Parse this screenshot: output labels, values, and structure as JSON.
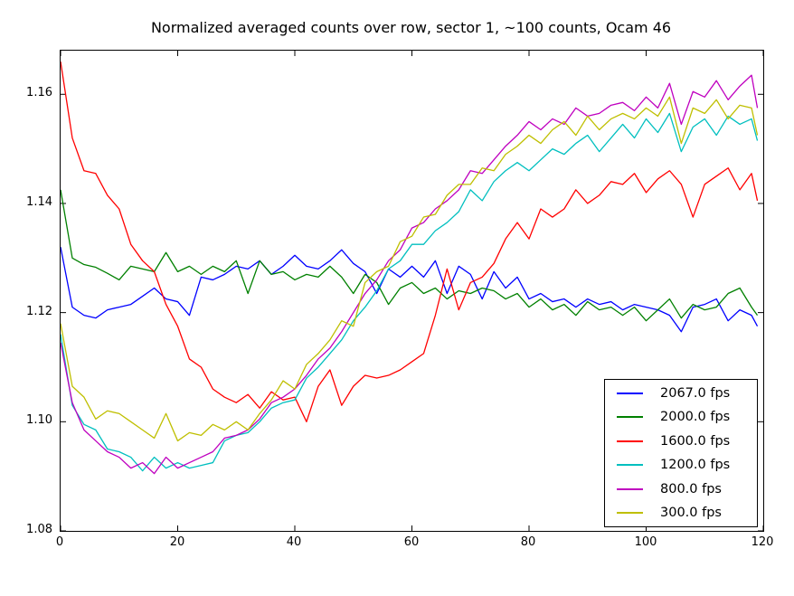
{
  "figure": {
    "background": "#ffffff"
  },
  "chart_data": {
    "type": "line",
    "title": "Normalized averaged counts over row, sector 1, ~100 counts, Ocam 46",
    "xlabel": "",
    "ylabel": "",
    "xlim": [
      0,
      120
    ],
    "ylim": [
      1.08,
      1.168
    ],
    "grid": false,
    "legend_position": "lower right",
    "xticks": {
      "values": [
        0,
        20,
        40,
        60,
        80,
        100,
        120
      ],
      "labels": [
        "0",
        "20",
        "40",
        "60",
        "80",
        "100",
        "120"
      ]
    },
    "yticks": {
      "values": [
        1.08,
        1.1,
        1.12,
        1.14,
        1.16
      ],
      "labels": [
        "1.08",
        "1.10",
        "1.12",
        "1.14",
        "1.16"
      ]
    },
    "x": [
      0,
      2,
      4,
      6,
      8,
      10,
      12,
      14,
      16,
      18,
      20,
      22,
      24,
      26,
      28,
      30,
      32,
      34,
      36,
      38,
      40,
      42,
      44,
      46,
      48,
      50,
      52,
      54,
      56,
      58,
      60,
      62,
      64,
      66,
      68,
      70,
      72,
      74,
      76,
      78,
      80,
      82,
      84,
      86,
      88,
      90,
      92,
      94,
      96,
      98,
      100,
      102,
      104,
      106,
      108,
      110,
      112,
      114,
      116,
      118,
      119
    ],
    "series": [
      {
        "name": "2067.0 fps",
        "color": "#0000ff",
        "values": [
          1.132,
          1.121,
          1.1195,
          1.119,
          1.1205,
          1.121,
          1.1215,
          1.123,
          1.1245,
          1.1225,
          1.122,
          1.1195,
          1.1265,
          1.126,
          1.127,
          1.1285,
          1.128,
          1.1295,
          1.127,
          1.1285,
          1.1305,
          1.1285,
          1.128,
          1.1295,
          1.1315,
          1.129,
          1.1275,
          1.1235,
          1.128,
          1.1265,
          1.1285,
          1.1265,
          1.1295,
          1.1235,
          1.1285,
          1.127,
          1.1225,
          1.1275,
          1.1245,
          1.1265,
          1.1225,
          1.1235,
          1.122,
          1.1225,
          1.121,
          1.1225,
          1.1215,
          1.122,
          1.1205,
          1.1215,
          1.121,
          1.1205,
          1.1195,
          1.1165,
          1.121,
          1.1215,
          1.1225,
          1.1185,
          1.1205,
          1.1195,
          1.1175
        ]
      },
      {
        "name": "2000.0 fps",
        "color": "#008000",
        "values": [
          1.1425,
          1.13,
          1.1288,
          1.1283,
          1.1272,
          1.126,
          1.1285,
          1.128,
          1.1275,
          1.131,
          1.1275,
          1.1285,
          1.127,
          1.1285,
          1.1275,
          1.1295,
          1.1235,
          1.1295,
          1.127,
          1.1275,
          1.126,
          1.127,
          1.1265,
          1.1285,
          1.1265,
          1.1235,
          1.127,
          1.1255,
          1.1215,
          1.1245,
          1.1255,
          1.1235,
          1.1245,
          1.1225,
          1.124,
          1.1235,
          1.1245,
          1.124,
          1.1225,
          1.1235,
          1.121,
          1.1225,
          1.1205,
          1.1215,
          1.1195,
          1.122,
          1.1205,
          1.121,
          1.1195,
          1.121,
          1.1185,
          1.1205,
          1.1225,
          1.119,
          1.1215,
          1.1205,
          1.121,
          1.1235,
          1.1245,
          1.121,
          1.1195
        ]
      },
      {
        "name": "1600.0 fps",
        "color": "#ff0000",
        "values": [
          1.166,
          1.152,
          1.146,
          1.1455,
          1.1415,
          1.139,
          1.1325,
          1.1295,
          1.1275,
          1.1215,
          1.1175,
          1.1115,
          1.11,
          1.106,
          1.1045,
          1.1035,
          1.105,
          1.1025,
          1.1055,
          1.104,
          1.1045,
          1.1,
          1.1065,
          1.1095,
          1.103,
          1.1065,
          1.1085,
          1.108,
          1.1085,
          1.1095,
          1.111,
          1.1125,
          1.1195,
          1.128,
          1.1205,
          1.1255,
          1.1265,
          1.129,
          1.1335,
          1.1365,
          1.1335,
          1.139,
          1.1375,
          1.139,
          1.1425,
          1.14,
          1.1415,
          1.144,
          1.1435,
          1.1455,
          1.142,
          1.1445,
          1.146,
          1.1435,
          1.1375,
          1.1435,
          1.145,
          1.1465,
          1.1425,
          1.1455,
          1.1405
        ]
      },
      {
        "name": "1200.0 fps",
        "color": "#00bfbf",
        "values": [
          1.116,
          1.103,
          1.0995,
          1.0985,
          1.095,
          1.0945,
          1.0935,
          1.091,
          1.0935,
          1.0915,
          1.0925,
          1.0915,
          1.092,
          1.0925,
          1.0965,
          1.0975,
          1.098,
          1.1,
          1.1025,
          1.1035,
          1.104,
          1.108,
          1.11,
          1.1125,
          1.115,
          1.1185,
          1.121,
          1.124,
          1.128,
          1.1295,
          1.1325,
          1.1325,
          1.135,
          1.1365,
          1.1385,
          1.1425,
          1.1405,
          1.144,
          1.146,
          1.1475,
          1.146,
          1.148,
          1.15,
          1.149,
          1.151,
          1.1525,
          1.1495,
          1.152,
          1.1545,
          1.152,
          1.1555,
          1.153,
          1.1565,
          1.1495,
          1.154,
          1.1555,
          1.1525,
          1.156,
          1.1545,
          1.1555,
          1.1515
        ]
      },
      {
        "name": "800.0 fps",
        "color": "#bf00bf",
        "values": [
          1.1145,
          1.1035,
          1.0985,
          1.0965,
          1.0945,
          1.0935,
          1.0915,
          1.0925,
          1.0905,
          1.0935,
          1.0915,
          1.0925,
          1.0935,
          1.0945,
          1.097,
          1.0975,
          1.0985,
          1.1005,
          1.1035,
          1.1045,
          1.106,
          1.1085,
          1.1115,
          1.1135,
          1.1165,
          1.12,
          1.1235,
          1.126,
          1.1295,
          1.1315,
          1.1355,
          1.1365,
          1.139,
          1.1405,
          1.1425,
          1.146,
          1.1455,
          1.148,
          1.1505,
          1.1525,
          1.155,
          1.1535,
          1.1555,
          1.1545,
          1.1575,
          1.156,
          1.1565,
          1.158,
          1.1585,
          1.157,
          1.1595,
          1.1575,
          1.162,
          1.1545,
          1.1605,
          1.1595,
          1.1625,
          1.159,
          1.1615,
          1.1635,
          1.1575
        ]
      },
      {
        "name": "300.0 fps",
        "color": "#bfbf00",
        "values": [
          1.118,
          1.1065,
          1.1045,
          1.1005,
          1.102,
          1.1015,
          1.1,
          1.0985,
          1.097,
          1.1015,
          1.0965,
          1.098,
          1.0975,
          1.0995,
          1.0985,
          1.1,
          1.0985,
          1.1015,
          1.104,
          1.1075,
          1.106,
          1.1105,
          1.1125,
          1.115,
          1.1185,
          1.1175,
          1.1255,
          1.1275,
          1.1285,
          1.133,
          1.134,
          1.1375,
          1.138,
          1.1415,
          1.1435,
          1.1435,
          1.1465,
          1.146,
          1.149,
          1.1505,
          1.1525,
          1.151,
          1.1535,
          1.155,
          1.1525,
          1.156,
          1.1535,
          1.1555,
          1.1565,
          1.1555,
          1.1575,
          1.156,
          1.1595,
          1.151,
          1.1575,
          1.1565,
          1.159,
          1.1555,
          1.158,
          1.1575,
          1.1525
        ]
      }
    ]
  }
}
